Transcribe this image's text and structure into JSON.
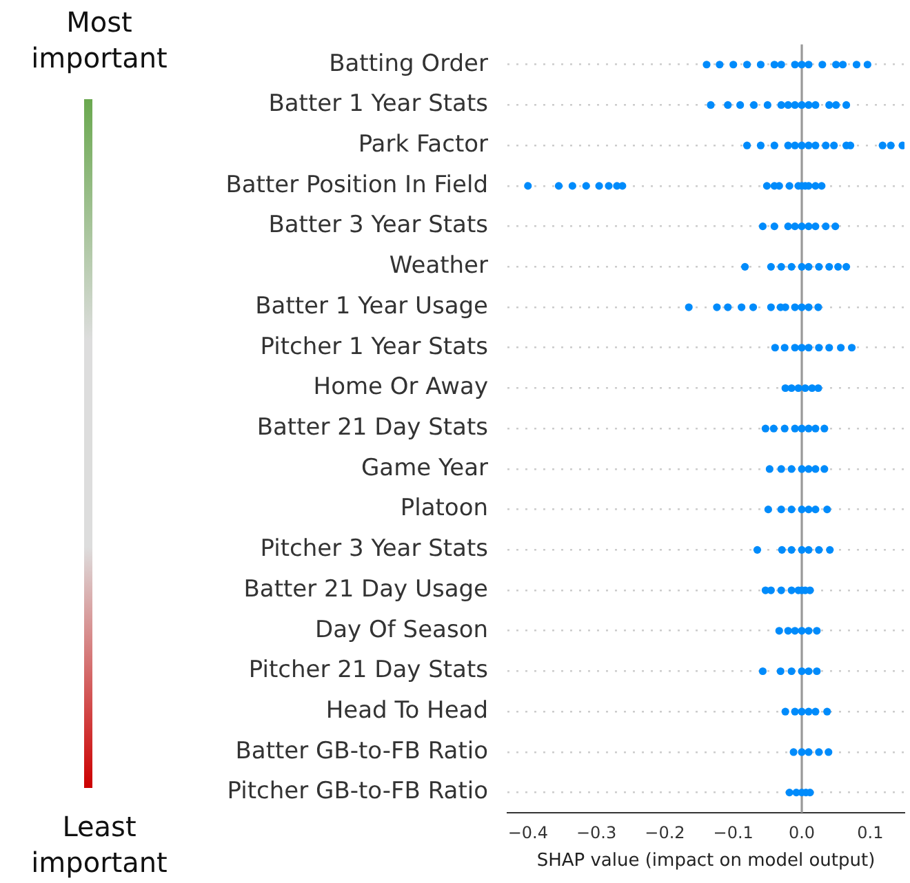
{
  "chart_data": {
    "type": "scatter",
    "orientation": "horizontal",
    "xlabel": "SHAP value (impact on model output)",
    "categories": [
      "Batting Order",
      "Batter 1 Year Stats",
      "Park Factor",
      "Batter Position In Field",
      "Batter 3 Year Stats",
      "Weather",
      "Batter 1 Year Usage",
      "Pitcher 1 Year Stats",
      "Home Or Away",
      "Batter 21 Day Stats",
      "Game Year",
      "Platoon",
      "Pitcher 3 Year Stats",
      "Batter 21 Day Usage",
      "Day Of Season",
      "Pitcher 21 Day Stats",
      "Head To Head",
      "Batter GB-to-FB Ratio",
      "Pitcher GB-to-FB Ratio"
    ],
    "xlim": [
      -0.43,
      0.15
    ],
    "xticks": [
      {
        "value": -0.4,
        "label": "−0.4"
      },
      {
        "value": -0.3,
        "label": "−0.3"
      },
      {
        "value": -0.2,
        "label": "−0.2"
      },
      {
        "value": -0.1,
        "label": "−0.1"
      },
      {
        "value": 0,
        "label": "0.0"
      },
      {
        "value": 0.1,
        "label": "0.1"
      }
    ],
    "grid": "y",
    "line_style": "dotted",
    "marker": "circle",
    "legend": false,
    "ref_lines": [
      {
        "axis": "x",
        "value": 0,
        "color": "#999999"
      }
    ],
    "annotations": [
      "Most important",
      "Least important"
    ],
    "series": [
      {
        "color": "#008bfb",
        "values": [
          -0.139,
          -0.133,
          -0.08,
          -0.4,
          -0.057,
          -0.083,
          -0.165,
          -0.039,
          -0.024,
          -0.053,
          -0.047,
          -0.049,
          -0.065,
          -0.053,
          -0.033,
          -0.057,
          -0.024,
          -0.012,
          -0.018
        ]
      },
      {
        "color": "#008bfb",
        "values": [
          -0.12,
          -0.108,
          -0.06,
          -0.355,
          -0.04,
          -0.045,
          -0.124,
          -0.025,
          -0.015,
          -0.041,
          -0.03,
          -0.03,
          -0.029,
          -0.045,
          -0.02,
          -0.031,
          -0.01,
          0,
          -0.008
        ]
      },
      {
        "color": "#008bfb",
        "values": [
          -0.1,
          -0.09,
          -0.04,
          -0.335,
          -0.02,
          -0.03,
          -0.108,
          -0.01,
          -0.005,
          -0.025,
          -0.015,
          -0.015,
          -0.015,
          -0.03,
          -0.01,
          -0.015,
          0,
          0.01,
          0
        ]
      },
      {
        "color": "#008bfb",
        "values": [
          -0.08,
          -0.07,
          -0.02,
          -0.315,
          -0.01,
          -0.015,
          -0.088,
          0,
          0.005,
          -0.01,
          0,
          0,
          0,
          -0.015,
          0,
          0,
          0.01,
          0.025,
          0.006
        ]
      },
      {
        "color": "#008bfb",
        "values": [
          -0.06,
          -0.05,
          -0.01,
          -0.296,
          0,
          0,
          -0.071,
          0.01,
          0.015,
          0,
          0.01,
          0.01,
          0.01,
          -0.005,
          0.01,
          0.01,
          0.02,
          0.039,
          0.012
        ]
      },
      {
        "color": "#008bfb",
        "values": [
          -0.04,
          -0.03,
          0,
          -0.282,
          0.01,
          0.01,
          -0.045,
          0.025,
          0.024,
          0.01,
          0.02,
          0.02,
          0.025,
          0,
          0.022,
          0.022,
          0.037,
          null,
          null
        ]
      },
      {
        "color": "#008bfb",
        "values": [
          -0.03,
          -0.02,
          0.01,
          -0.27,
          0.02,
          0.025,
          -0.031,
          0.04,
          null,
          0.02,
          0.033,
          0.037,
          0.041,
          0.005,
          null,
          null,
          null,
          null,
          null
        ]
      },
      {
        "color": "#008bfb",
        "values": [
          -0.01,
          -0.01,
          0.02,
          -0.262,
          0.035,
          0.04,
          -0.024,
          0.057,
          null,
          0.033,
          null,
          null,
          null,
          0.012,
          null,
          null,
          null,
          null,
          null
        ]
      },
      {
        "color": "#008bfb",
        "values": [
          0,
          0,
          0.035,
          -0.051,
          0.049,
          0.053,
          -0.01,
          0.073,
          null,
          null,
          null,
          null,
          null,
          null,
          null,
          null,
          null,
          null,
          null
        ]
      },
      {
        "color": "#008bfb",
        "values": [
          0.01,
          0.01,
          0.047,
          -0.04,
          null,
          0.065,
          0,
          null,
          null,
          null,
          null,
          null,
          null,
          null,
          null,
          null,
          null,
          null,
          null
        ]
      },
      {
        "color": "#008bfb",
        "values": [
          0.03,
          0.02,
          0.065,
          -0.033,
          null,
          null,
          0.01,
          null,
          null,
          null,
          null,
          null,
          null,
          null,
          null,
          null,
          null,
          null,
          null
        ]
      },
      {
        "color": "#008bfb",
        "values": [
          0.05,
          0.04,
          0.071,
          -0.018,
          null,
          null,
          0.024,
          null,
          null,
          null,
          null,
          null,
          null,
          null,
          null,
          null,
          null,
          null,
          null
        ]
      },
      {
        "color": "#008bfb",
        "values": [
          0.06,
          0.05,
          0.118,
          -0.005,
          null,
          null,
          null,
          null,
          null,
          null,
          null,
          null,
          null,
          null,
          null,
          null,
          null,
          null,
          null
        ]
      },
      {
        "color": "#008bfb",
        "values": [
          0.08,
          0.065,
          0.13,
          0,
          null,
          null,
          null,
          null,
          null,
          null,
          null,
          null,
          null,
          null,
          null,
          null,
          null,
          null,
          null
        ]
      },
      {
        "color": "#008bfb",
        "values": [
          0.096,
          null,
          0.147,
          0.005,
          null,
          null,
          null,
          null,
          null,
          null,
          null,
          null,
          null,
          null,
          null,
          null,
          null,
          null,
          null
        ]
      },
      {
        "color": "#008bfb",
        "values": [
          null,
          null,
          null,
          0.01,
          null,
          null,
          null,
          null,
          null,
          null,
          null,
          null,
          null,
          null,
          null,
          null,
          null,
          null,
          null
        ]
      },
      {
        "color": "#008bfb",
        "values": [
          null,
          null,
          null,
          0.02,
          null,
          null,
          null,
          null,
          null,
          null,
          null,
          null,
          null,
          null,
          null,
          null,
          null,
          null,
          null
        ]
      },
      {
        "color": "#008bfb",
        "values": [
          null,
          null,
          null,
          0.029,
          null,
          null,
          null,
          null,
          null,
          null,
          null,
          null,
          null,
          null,
          null,
          null,
          null,
          null,
          null
        ]
      }
    ]
  }
}
